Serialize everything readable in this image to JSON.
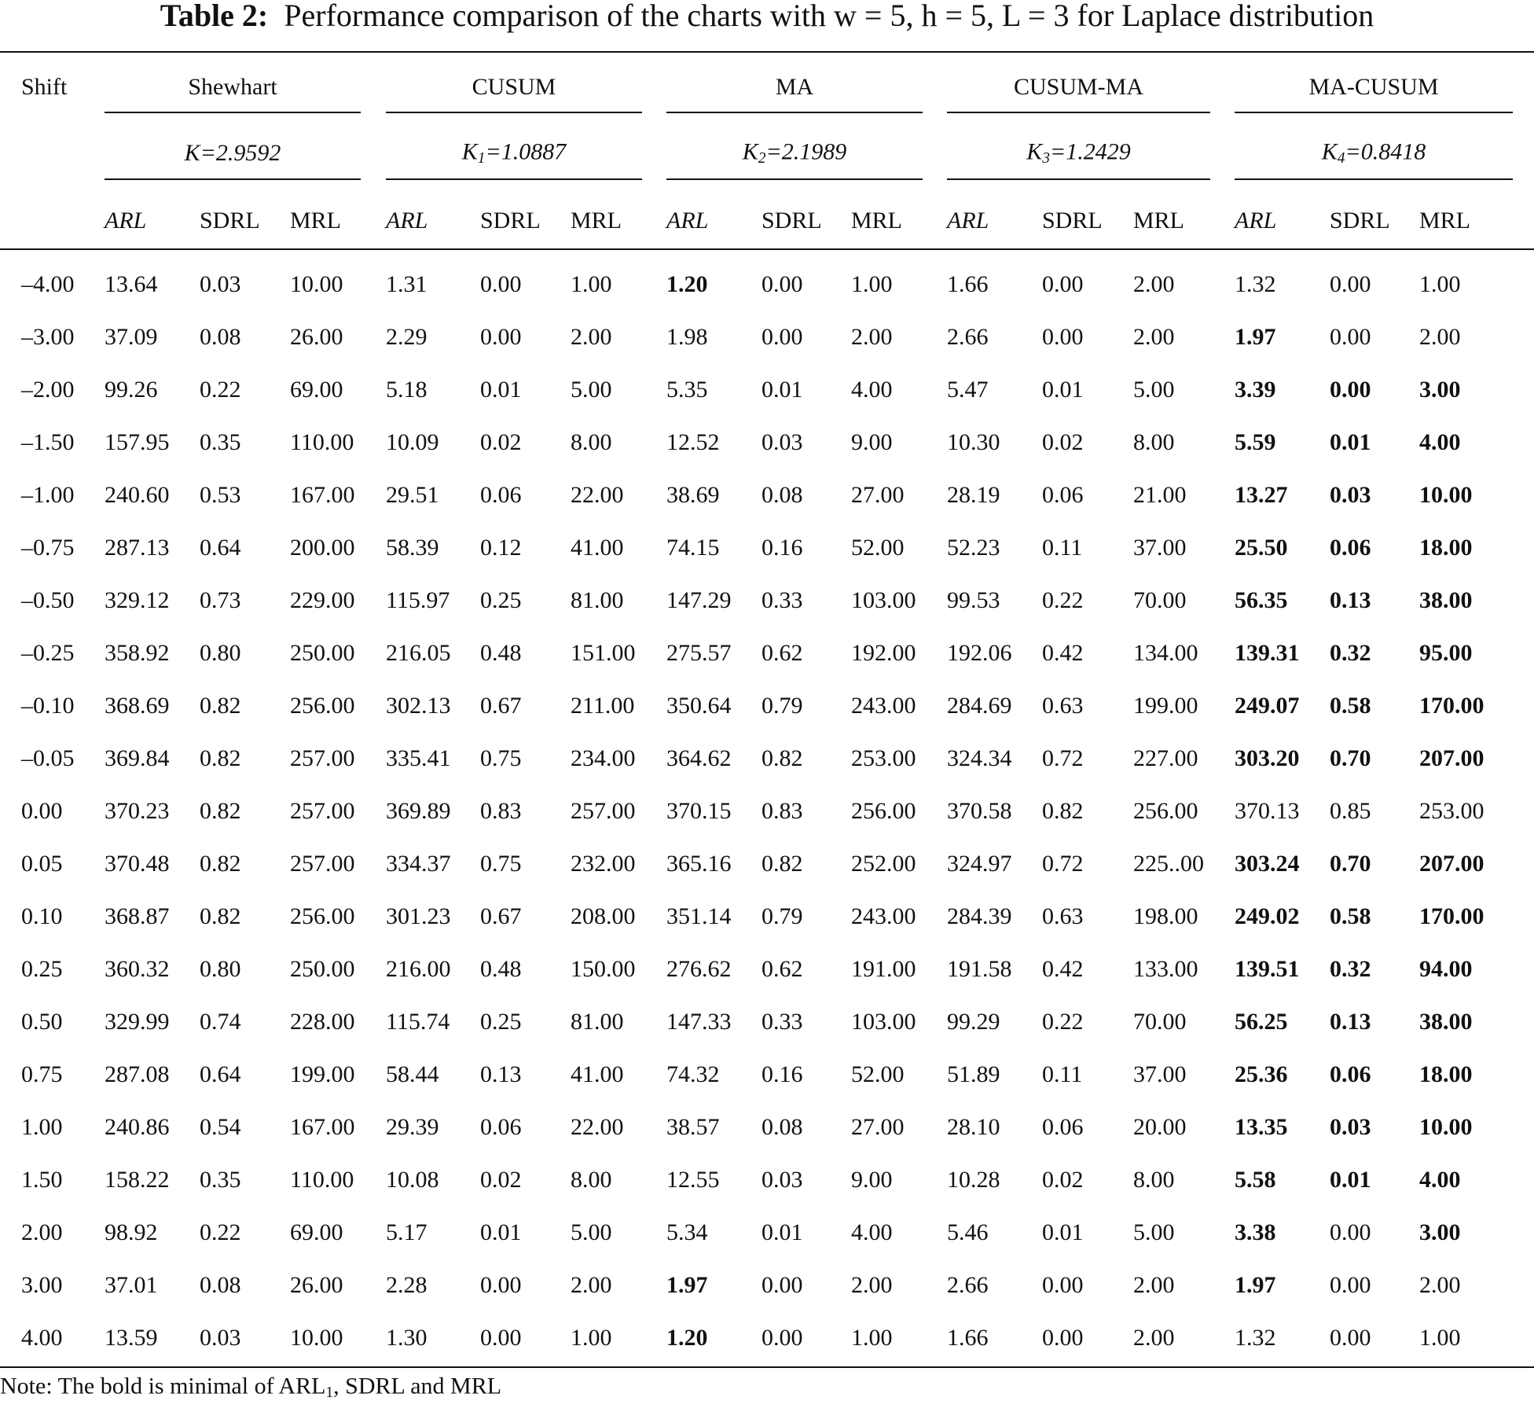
{
  "title": {
    "label": "Table 2:",
    "text": "Performance comparison of the charts with w = 5, h = 5, L = 3 for Laplace distribution"
  },
  "table": {
    "corner": "Shift",
    "groups": [
      {
        "name": "Shewhart",
        "param": {
          "base": "K",
          "sub": null,
          "rest": "=2.9592"
        }
      },
      {
        "name": "CUSUM",
        "param": {
          "base": "K",
          "sub": "1",
          "rest": "=1.0887"
        }
      },
      {
        "name": "MA",
        "param": {
          "base": "K",
          "sub": "2",
          "rest": "=2.1989"
        }
      },
      {
        "name": "CUSUM-MA",
        "param": {
          "base": "K",
          "sub": "3",
          "rest": "=1.2429"
        }
      },
      {
        "name": "MA-CUSUM",
        "param": {
          "base": "K",
          "sub": "4",
          "rest": "=0.8418"
        }
      }
    ],
    "columns": [
      "ARL",
      "SDRL",
      "MRL",
      "ARL",
      "SDRL",
      "MRL",
      "ARL",
      "SDRL",
      "MRL",
      "ARL",
      "SDRL",
      "MRL",
      "ARL",
      "SDRL",
      "MRL"
    ],
    "rows": [
      [
        "–4.00",
        "13.64",
        "0.03",
        "10.00",
        "1.31",
        "0.00",
        "1.00",
        {
          "text": "1.20",
          "bold": true
        },
        "0.00",
        "1.00",
        "1.66",
        "0.00",
        "2.00",
        "1.32",
        "0.00",
        "1.00"
      ],
      [
        "–3.00",
        "37.09",
        "0.08",
        "26.00",
        "2.29",
        "0.00",
        "2.00",
        "1.98",
        "0.00",
        "2.00",
        "2.66",
        "0.00",
        "2.00",
        {
          "text": "1.97",
          "bold": true
        },
        "0.00",
        "2.00"
      ],
      [
        "–2.00",
        "99.26",
        "0.22",
        "69.00",
        "5.18",
        "0.01",
        "5.00",
        "5.35",
        "0.01",
        "4.00",
        "5.47",
        "0.01",
        "5.00",
        {
          "text": "3.39",
          "bold": true
        },
        {
          "text": "0.00",
          "bold": true
        },
        {
          "text": "3.00",
          "bold": true
        }
      ],
      [
        "–1.50",
        "157.95",
        "0.35",
        "110.00",
        "10.09",
        "0.02",
        "8.00",
        "12.52",
        "0.03",
        "9.00",
        "10.30",
        "0.02",
        "8.00",
        {
          "text": "5.59",
          "bold": true
        },
        {
          "text": "0.01",
          "bold": true
        },
        {
          "text": "4.00",
          "bold": true
        }
      ],
      [
        "–1.00",
        "240.60",
        "0.53",
        "167.00",
        "29.51",
        "0.06",
        "22.00",
        "38.69",
        "0.08",
        "27.00",
        "28.19",
        "0.06",
        "21.00",
        {
          "text": "13.27",
          "bold": true
        },
        {
          "text": "0.03",
          "bold": true
        },
        {
          "text": "10.00",
          "bold": true
        }
      ],
      [
        "–0.75",
        "287.13",
        "0.64",
        "200.00",
        "58.39",
        "0.12",
        "41.00",
        "74.15",
        "0.16",
        "52.00",
        "52.23",
        "0.11",
        "37.00",
        {
          "text": "25.50",
          "bold": true
        },
        {
          "text": "0.06",
          "bold": true
        },
        {
          "text": "18.00",
          "bold": true
        }
      ],
      [
        "–0.50",
        "329.12",
        "0.73",
        "229.00",
        "115.97",
        "0.25",
        "81.00",
        "147.29",
        "0.33",
        "103.00",
        "99.53",
        "0.22",
        "70.00",
        {
          "text": "56.35",
          "bold": true
        },
        {
          "text": "0.13",
          "bold": true
        },
        {
          "text": "38.00",
          "bold": true
        }
      ],
      [
        "–0.25",
        "358.92",
        "0.80",
        "250.00",
        "216.05",
        "0.48",
        "151.00",
        "275.57",
        "0.62",
        "192.00",
        "192.06",
        "0.42",
        "134.00",
        {
          "text": "139.31",
          "bold": true
        },
        {
          "text": "0.32",
          "bold": true
        },
        {
          "text": "95.00",
          "bold": true
        }
      ],
      [
        "–0.10",
        "368.69",
        "0.82",
        "256.00",
        "302.13",
        "0.67",
        "211.00",
        "350.64",
        "0.79",
        "243.00",
        "284.69",
        "0.63",
        "199.00",
        {
          "text": "249.07",
          "bold": true
        },
        {
          "text": "0.58",
          "bold": true
        },
        {
          "text": "170.00",
          "bold": true
        }
      ],
      [
        "–0.05",
        "369.84",
        "0.82",
        "257.00",
        "335.41",
        "0.75",
        "234.00",
        "364.62",
        "0.82",
        "253.00",
        "324.34",
        "0.72",
        "227.00",
        {
          "text": "303.20",
          "bold": true
        },
        {
          "text": "0.70",
          "bold": true
        },
        {
          "text": "207.00",
          "bold": true
        }
      ],
      [
        "0.00",
        "370.23",
        "0.82",
        "257.00",
        "369.89",
        "0.83",
        "257.00",
        "370.15",
        "0.83",
        "256.00",
        "370.58",
        "0.82",
        "256.00",
        "370.13",
        "0.85",
        "253.00"
      ],
      [
        "0.05",
        "370.48",
        "0.82",
        "257.00",
        "334.37",
        "0.75",
        "232.00",
        "365.16",
        "0.82",
        "252.00",
        "324.97",
        "0.72",
        "225..00",
        {
          "text": "303.24",
          "bold": true
        },
        {
          "text": "0.70",
          "bold": true
        },
        {
          "text": "207.00",
          "bold": true
        }
      ],
      [
        "0.10",
        "368.87",
        "0.82",
        "256.00",
        "301.23",
        "0.67",
        "208.00",
        "351.14",
        "0.79",
        "243.00",
        "284.39",
        "0.63",
        "198.00",
        {
          "text": "249.02",
          "bold": true
        },
        {
          "text": "0.58",
          "bold": true
        },
        {
          "text": "170.00",
          "bold": true
        }
      ],
      [
        "0.25",
        "360.32",
        "0.80",
        "250.00",
        "216.00",
        "0.48",
        "150.00",
        "276.62",
        "0.62",
        "191.00",
        "191.58",
        "0.42",
        "133.00",
        {
          "text": "139.51",
          "bold": true
        },
        {
          "text": "0.32",
          "bold": true
        },
        {
          "text": "94.00",
          "bold": true
        }
      ],
      [
        "0.50",
        "329.99",
        "0.74",
        "228.00",
        "115.74",
        "0.25",
        "81.00",
        "147.33",
        "0.33",
        "103.00",
        "99.29",
        "0.22",
        "70.00",
        {
          "text": "56.25",
          "bold": true
        },
        {
          "text": "0.13",
          "bold": true
        },
        {
          "text": "38.00",
          "bold": true
        }
      ],
      [
        "0.75",
        "287.08",
        "0.64",
        "199.00",
        "58.44",
        "0.13",
        "41.00",
        "74.32",
        "0.16",
        "52.00",
        "51.89",
        "0.11",
        "37.00",
        {
          "text": "25.36",
          "bold": true
        },
        {
          "text": "0.06",
          "bold": true
        },
        {
          "text": "18.00",
          "bold": true
        }
      ],
      [
        "1.00",
        "240.86",
        "0.54",
        "167.00",
        "29.39",
        "0.06",
        "22.00",
        "38.57",
        "0.08",
        "27.00",
        "28.10",
        "0.06",
        "20.00",
        {
          "text": "13.35",
          "bold": true
        },
        {
          "text": "0.03",
          "bold": true
        },
        {
          "text": "10.00",
          "bold": true
        }
      ],
      [
        "1.50",
        "158.22",
        "0.35",
        "110.00",
        "10.08",
        "0.02",
        "8.00",
        "12.55",
        "0.03",
        "9.00",
        "10.28",
        "0.02",
        "8.00",
        {
          "text": "5.58",
          "bold": true
        },
        {
          "text": "0.01",
          "bold": true
        },
        {
          "text": "4.00",
          "bold": true
        }
      ],
      [
        "2.00",
        "98.92",
        "0.22",
        "69.00",
        "5.17",
        "0.01",
        "5.00",
        "5.34",
        "0.01",
        "4.00",
        "5.46",
        "0.01",
        "5.00",
        {
          "text": "3.38",
          "bold": true
        },
        "0.00",
        {
          "text": "3.00",
          "bold": true
        }
      ],
      [
        "3.00",
        "37.01",
        "0.08",
        "26.00",
        "2.28",
        "0.00",
        "2.00",
        {
          "text": "1.97",
          "bold": true
        },
        "0.00",
        "2.00",
        "2.66",
        "0.00",
        "2.00",
        {
          "text": "1.97",
          "bold": true
        },
        "0.00",
        "2.00"
      ],
      [
        "4.00",
        "13.59",
        "0.03",
        "10.00",
        "1.30",
        "0.00",
        "1.00",
        {
          "text": "1.20",
          "bold": true
        },
        "0.00",
        "1.00",
        "1.66",
        "0.00",
        "2.00",
        "1.32",
        "0.00",
        "1.00"
      ]
    ]
  },
  "note": {
    "before": "Note: The bold is minimal of ARL",
    "sub": "1",
    "after": ", SDRL and MRL"
  }
}
